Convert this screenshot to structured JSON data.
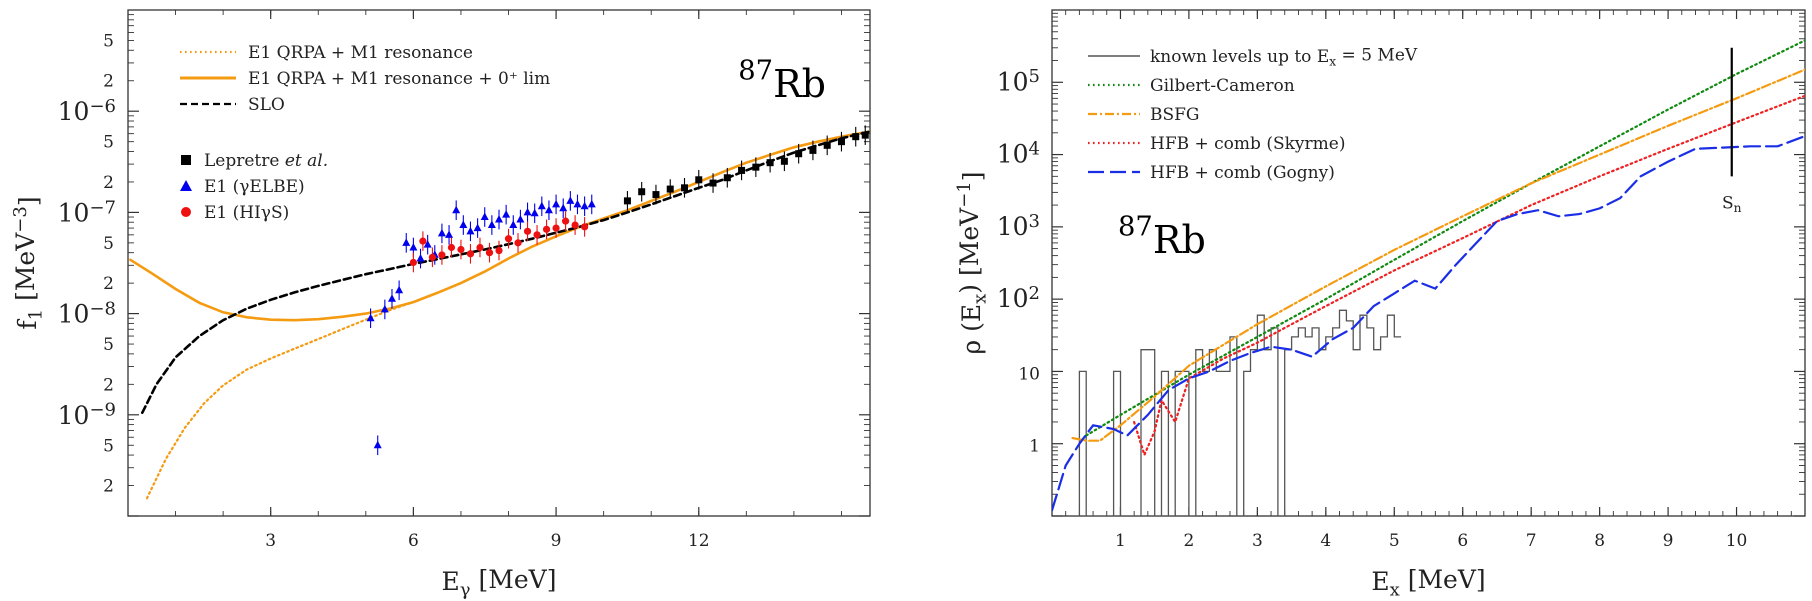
{
  "chart_data": [
    {
      "type": "scatter",
      "panel": "left",
      "annotation": {
        "sup": "87",
        "main": "Rb"
      },
      "xlabel": {
        "main": "E",
        "sub": "γ",
        "unit": " [MeV]"
      },
      "ylabel": {
        "main": "f",
        "sub": "1",
        "unit": " [MeV",
        "sup": "−3",
        "close": "]"
      },
      "xlim": [
        0,
        15.6
      ],
      "ylim": [
        1e-10,
        1e-05
      ],
      "yscale": "log",
      "x_ticks": [
        3,
        6,
        9,
        12
      ],
      "x_tick_labels": [
        "3",
        "6",
        "9",
        "12"
      ],
      "y_major_ticks": [
        {
          "value": 1e-09,
          "base": "10",
          "exp": "−9"
        },
        {
          "value": 1e-08,
          "base": "10",
          "exp": "−8"
        },
        {
          "value": 1e-07,
          "base": "10",
          "exp": "−7"
        },
        {
          "value": 1e-06,
          "base": "10",
          "exp": "−6"
        }
      ],
      "y_minor_labeled": [
        {
          "value": 2e-10,
          "label": "2"
        },
        {
          "value": 5e-10,
          "label": "5"
        },
        {
          "value": 2e-09,
          "label": "2"
        },
        {
          "value": 5e-09,
          "label": "5"
        },
        {
          "value": 2e-08,
          "label": "2"
        },
        {
          "value": 5e-08,
          "label": "5"
        },
        {
          "value": 2e-07,
          "label": "2"
        },
        {
          "value": 5e-07,
          "label": "5"
        },
        {
          "value": 2e-06,
          "label": "2"
        },
        {
          "value": 5e-06,
          "label": "5"
        }
      ],
      "legend_placement": "top-left",
      "series": [
        {
          "name": "E1 QRPA + M1 resonance",
          "kind": "line",
          "style": "dotted",
          "color": "#f59b12",
          "x": [
            0.4,
            0.8,
            1.2,
            1.6,
            2.0,
            2.5,
            3.0,
            3.5,
            4.0,
            4.5,
            5.0,
            5.5,
            6.0,
            6.5,
            7.0,
            7.5,
            8.0,
            8.5,
            9.0,
            9.5,
            10.0,
            10.5,
            11.0,
            11.5,
            12.0,
            12.5,
            13.0,
            13.5,
            14.0,
            14.5,
            15.0,
            15.6
          ],
          "y": [
            1.5e-10,
            3.7e-10,
            7.5e-10,
            1.3e-09,
            1.95e-09,
            2.8e-09,
            3.6e-09,
            4.5e-09,
            5.6e-09,
            7e-09,
            8.7e-09,
            1.08e-08,
            1.3e-08,
            1.6e-08,
            2e-08,
            2.6e-08,
            3.5e-08,
            4.6e-08,
            5.8e-08,
            7.2e-08,
            8.7e-08,
            1.05e-07,
            1.3e-07,
            1.6e-07,
            2e-07,
            2.5e-07,
            3.1e-07,
            3.7e-07,
            4.4e-07,
            5e-07,
            5.6e-07,
            6.3e-07
          ]
        },
        {
          "name": "E1 QRPA + M1 resonance + 0⁺ lim",
          "kind": "line",
          "style": "solid",
          "color": "#f59b12",
          "x": [
            0.05,
            0.5,
            1.0,
            1.5,
            2.0,
            2.5,
            3.0,
            3.5,
            4.0,
            4.5,
            5.0,
            5.5,
            6.0,
            6.5,
            7.0,
            7.5,
            8.0,
            8.5,
            9.0,
            9.5,
            10.0,
            10.5,
            11.0,
            11.5,
            12.0,
            12.5,
            13.0,
            13.5,
            14.0,
            14.5,
            15.0,
            15.6
          ],
          "y": [
            3.4e-08,
            2.5e-08,
            1.75e-08,
            1.28e-08,
            1.03e-08,
            9.2e-09,
            8.7e-09,
            8.6e-09,
            8.8e-09,
            9.3e-09,
            1e-08,
            1.12e-08,
            1.3e-08,
            1.6e-08,
            2e-08,
            2.6e-08,
            3.5e-08,
            4.6e-08,
            5.8e-08,
            7.2e-08,
            8.7e-08,
            1.05e-07,
            1.3e-07,
            1.6e-07,
            2e-07,
            2.5e-07,
            3.1e-07,
            3.7e-07,
            4.4e-07,
            5e-07,
            5.6e-07,
            6.3e-07
          ]
        },
        {
          "name": "SLO",
          "kind": "line",
          "style": "dashed",
          "color": "#000000",
          "x": [
            0.3,
            0.6,
            1.0,
            1.5,
            2.0,
            2.5,
            3.0,
            3.5,
            4.0,
            4.5,
            5.0,
            5.5,
            6.0,
            6.5,
            7.0,
            7.5,
            8.0,
            8.5,
            9.0,
            9.5,
            10.0,
            10.5,
            11.0,
            11.5,
            12.0,
            12.5,
            13.0,
            13.5,
            14.0,
            14.5,
            15.0,
            15.6
          ],
          "y": [
            1.05e-09,
            2e-09,
            3.7e-09,
            6e-09,
            8.6e-09,
            1.12e-08,
            1.37e-08,
            1.62e-08,
            1.88e-08,
            2.15e-08,
            2.45e-08,
            2.75e-08,
            3.1e-08,
            3.45e-08,
            3.85e-08,
            4.3e-08,
            4.85e-08,
            5.5e-08,
            6.3e-08,
            7.2e-08,
            8.4e-08,
            1e-07,
            1.2e-07,
            1.45e-07,
            1.75e-07,
            2.1e-07,
            2.6e-07,
            3.2e-07,
            3.9e-07,
            4.6e-07,
            5.4e-07,
            6.3e-07
          ]
        },
        {
          "name": "Lepretre et al.",
          "kind": "points",
          "marker": "square",
          "color": "#000000",
          "x": [
            10.5,
            10.8,
            11.1,
            11.4,
            11.7,
            12.0,
            12.3,
            12.6,
            12.9,
            13.2,
            13.5,
            13.8,
            14.1,
            14.4,
            14.7,
            15.0,
            15.3,
            15.5
          ],
          "y": [
            1.3e-07,
            1.6e-07,
            1.5e-07,
            1.7e-07,
            1.75e-07,
            2.1e-07,
            1.95e-07,
            2.2e-07,
            2.6e-07,
            2.8e-07,
            3.1e-07,
            3.2e-07,
            3.8e-07,
            4.1e-07,
            4.6e-07,
            5e-07,
            5.6e-07,
            5.8e-07
          ]
        },
        {
          "name": "E1 (γELBE)",
          "kind": "points",
          "marker": "triangle",
          "color": "#0000ee",
          "x": [
            5.1,
            5.25,
            5.4,
            5.55,
            5.7,
            5.85,
            6.0,
            6.15,
            6.3,
            6.45,
            6.6,
            6.75,
            6.9,
            7.05,
            7.2,
            7.35,
            7.5,
            7.65,
            7.8,
            7.95,
            8.1,
            8.25,
            8.4,
            8.55,
            8.7,
            8.85,
            9.0,
            9.15,
            9.3,
            9.45,
            9.6,
            9.75
          ],
          "y": [
            9e-09,
            5e-10,
            1.1e-08,
            1.4e-08,
            1.7e-08,
            5e-08,
            4.5e-08,
            3.5e-08,
            4.8e-08,
            3.8e-08,
            6.2e-08,
            6e-08,
            1.05e-07,
            7.5e-08,
            6.5e-08,
            7e-08,
            9e-08,
            7.5e-08,
            8.5e-08,
            9.5e-08,
            7.5e-08,
            8.5e-08,
            1e-07,
            9.8e-08,
            1.15e-07,
            1.05e-07,
            1.2e-07,
            1.1e-07,
            1.3e-07,
            1.2e-07,
            1.15e-07,
            1.2e-07
          ]
        },
        {
          "name": "E1 (HIγS)",
          "kind": "points",
          "marker": "circle",
          "color": "#ee1111",
          "x": [
            6.0,
            6.2,
            6.4,
            6.6,
            6.8,
            7.0,
            7.2,
            7.4,
            7.6,
            7.8,
            8.0,
            8.2,
            8.4,
            8.6,
            8.8,
            9.0,
            9.2,
            9.4,
            9.6
          ],
          "y": [
            3.2e-08,
            5.2e-08,
            3.6e-08,
            3.8e-08,
            4.5e-08,
            4.3e-08,
            3.9e-08,
            4.5e-08,
            4e-08,
            4.2e-08,
            5.5e-08,
            5e-08,
            6.5e-08,
            6e-08,
            6.8e-08,
            7e-08,
            8.2e-08,
            7.5e-08,
            7.2e-08
          ]
        }
      ]
    },
    {
      "type": "line",
      "panel": "right",
      "annotation": {
        "sup": "87",
        "main": "Rb"
      },
      "xlabel": {
        "main": "E",
        "sub": "x",
        "unit": " [MeV]"
      },
      "ylabel": {
        "main": "ρ (E",
        "sub": "x",
        "mid": ") [MeV",
        "sup": "−1",
        "close": "]"
      },
      "xlim": [
        0,
        11
      ],
      "ylim": [
        0.1,
        1000000.0
      ],
      "yscale": "log",
      "x_ticks": [
        1,
        2,
        3,
        4,
        5,
        6,
        7,
        8,
        9,
        10
      ],
      "x_tick_labels": [
        "1",
        "2",
        "3",
        "4",
        "5",
        "6",
        "7",
        "8",
        "9",
        "10"
      ],
      "y_tick_labels": [
        {
          "value": 1,
          "base": "1",
          "exp": ""
        },
        {
          "value": 10,
          "base": "10",
          "exp": ""
        },
        {
          "value": 100,
          "base": "10",
          "exp": "2"
        },
        {
          "value": 1000,
          "base": "10",
          "exp": "3"
        },
        {
          "value": 10000,
          "base": "10",
          "exp": "4"
        },
        {
          "value": 100000,
          "base": "10",
          "exp": "5"
        }
      ],
      "sn_marker": {
        "x": 9.93,
        "y_range": [
          5000,
          300000
        ],
        "label_main": "S",
        "label_sub": "n"
      },
      "legend_placement": "top-left",
      "series": [
        {
          "name": "known levels up to E",
          "name_sub": "x",
          "name_tail": " = 5 MeV",
          "kind": "step",
          "color": "#555555",
          "x": [
            0.3,
            0.4,
            0.5,
            0.6,
            0.7,
            0.8,
            0.9,
            1.0,
            1.1,
            1.2,
            1.3,
            1.4,
            1.5,
            1.6,
            1.7,
            1.8,
            1.9,
            2.0,
            2.1,
            2.2,
            2.3,
            2.4,
            2.5,
            2.6,
            2.7,
            2.8,
            2.9,
            3.0,
            3.1,
            3.2,
            3.3,
            3.4,
            3.5,
            3.6,
            3.7,
            3.8,
            3.9,
            4.0,
            4.1,
            4.2,
            4.3,
            4.4,
            4.5,
            4.6,
            4.7,
            4.8,
            4.9,
            5.0
          ],
          "y": [
            0.1,
            10,
            0.1,
            0.1,
            0.1,
            0.1,
            10,
            0.1,
            0.1,
            0.1,
            20,
            20,
            0.1,
            10,
            0.1,
            10,
            10,
            0.1,
            20,
            10,
            20,
            10,
            10,
            30,
            0.1,
            10,
            20,
            60,
            20,
            40,
            0.1,
            20,
            30,
            40,
            30,
            40,
            20,
            30,
            40,
            70,
            50,
            20,
            60,
            40,
            20,
            30,
            60,
            30
          ]
        },
        {
          "name": "Gilbert-Cameron",
          "kind": "line",
          "style": "dotted",
          "color": "#108a10",
          "x": [
            0.5,
            1.0,
            2.0,
            3.0,
            4.0,
            5.0,
            6.0,
            7.0,
            8.0,
            9.0,
            10.0,
            11.0
          ],
          "y": [
            1.3,
            2.5,
            9,
            30,
            100,
            350,
            1200,
            4000,
            13000,
            42000,
            130000,
            380000
          ]
        },
        {
          "name": "BSFG",
          "kind": "line",
          "style": "dashdot",
          "color": "#f59b12",
          "x": [
            0.3,
            0.5,
            0.7,
            1.0,
            1.5,
            2.0,
            3.0,
            4.0,
            5.0,
            6.0,
            7.0,
            8.0,
            9.0,
            10.0,
            11.0
          ],
          "y": [
            1.2,
            1.1,
            1.1,
            1.8,
            4.5,
            12,
            45,
            150,
            480,
            1400,
            4000,
            10000,
            25000,
            60000,
            150000
          ]
        },
        {
          "name": "HFB + comb (Skyrme)",
          "kind": "line",
          "style": "dotted",
          "color": "#ee2222",
          "x": [
            1.2,
            1.35,
            1.5,
            1.6,
            1.8,
            2.0,
            2.5,
            3.0,
            3.5,
            4.0,
            5.0,
            6.0,
            7.0,
            8.0,
            9.0,
            10.0,
            11.0
          ],
          "y": [
            2,
            0.7,
            1.5,
            4,
            2.0,
            8,
            15,
            25,
            45,
            80,
            250,
            700,
            2000,
            5000,
            12000,
            28000,
            65000
          ]
        },
        {
          "name": "HFB + comb (Gogny)",
          "kind": "line",
          "style": "longdash",
          "color": "#1a2ee6",
          "x": [
            0.0,
            0.2,
            0.4,
            0.6,
            0.9,
            1.1,
            1.4,
            1.7,
            2.0,
            2.3,
            2.6,
            2.9,
            3.2,
            3.5,
            3.8,
            4.1,
            4.4,
            4.7,
            5.0,
            5.3,
            5.6,
            5.9,
            6.2,
            6.5,
            6.8,
            7.1,
            7.4,
            7.7,
            8.0,
            8.3,
            8.6,
            9.0,
            9.4,
            9.8,
            10.2,
            10.6,
            11.0
          ],
          "y": [
            0.12,
            0.5,
            1.0,
            1.8,
            1.6,
            1.3,
            2.5,
            5.5,
            8.0,
            10,
            14,
            18,
            22,
            20,
            16,
            28,
            40,
            80,
            120,
            180,
            140,
            300,
            600,
            1200,
            1500,
            1700,
            1400,
            1500,
            1800,
            2500,
            5000,
            8000,
            12000,
            12500,
            13000,
            13000,
            18000
          ]
        }
      ]
    }
  ]
}
